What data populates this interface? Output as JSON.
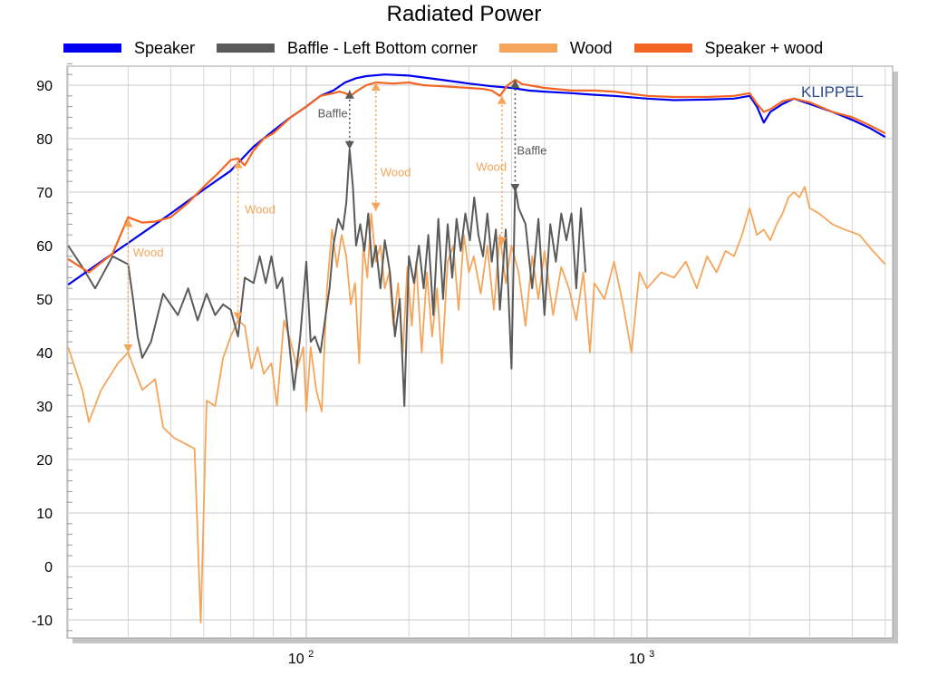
{
  "chart_data": {
    "type": "line",
    "title": "Radiated Power",
    "watermark": "KLIPPEL",
    "xlabel": "",
    "ylabel": "",
    "x_scale": "log",
    "xlim": [
      20,
      5000
    ],
    "ylim": [
      -12,
      95
    ],
    "grid": true,
    "legend_position": "top",
    "y_ticks": [
      -10,
      0,
      10,
      20,
      30,
      40,
      50,
      60,
      70,
      80,
      90
    ],
    "x_ticks": [
      {
        "value": 100,
        "base": "10",
        "exp": "2"
      },
      {
        "value": 1000,
        "base": "10",
        "exp": "3"
      }
    ],
    "series": [
      {
        "name": "Speaker",
        "color": "#0000ee",
        "points": [
          [
            20,
            52.7
          ],
          [
            25,
            57
          ],
          [
            30,
            60.5
          ],
          [
            40,
            66
          ],
          [
            50,
            70.5
          ],
          [
            60,
            74
          ],
          [
            70,
            78.5
          ],
          [
            80,
            81.5
          ],
          [
            90,
            84
          ],
          [
            100,
            86
          ],
          [
            110,
            88
          ],
          [
            120,
            89
          ],
          [
            130,
            90.5
          ],
          [
            140,
            91.3
          ],
          [
            150,
            91.7
          ],
          [
            170,
            92
          ],
          [
            200,
            91.8
          ],
          [
            250,
            91
          ],
          [
            300,
            90.3
          ],
          [
            350,
            89.8
          ],
          [
            400,
            89.5
          ],
          [
            450,
            89
          ],
          [
            500,
            88.8
          ],
          [
            600,
            88.5
          ],
          [
            700,
            88.2
          ],
          [
            800,
            88
          ],
          [
            1000,
            87.5
          ],
          [
            1200,
            87.2
          ],
          [
            1500,
            87.3
          ],
          [
            1800,
            87.5
          ],
          [
            2000,
            88
          ],
          [
            2100,
            86
          ],
          [
            2200,
            83
          ],
          [
            2300,
            85
          ],
          [
            2500,
            86.5
          ],
          [
            2700,
            87.5
          ],
          [
            3000,
            86.5
          ],
          [
            3500,
            85
          ],
          [
            4000,
            83.5
          ],
          [
            4500,
            82
          ],
          [
            5000,
            80.3
          ]
        ]
      },
      {
        "name": "Baffle - Left Bottom corner",
        "color": "#5a5a5a",
        "points": [
          [
            20,
            60
          ],
          [
            22,
            56
          ],
          [
            24,
            52
          ],
          [
            27,
            58
          ],
          [
            30,
            56.5
          ],
          [
            31,
            50
          ],
          [
            32,
            43
          ],
          [
            33,
            39
          ],
          [
            35,
            42
          ],
          [
            38,
            51
          ],
          [
            42,
            47
          ],
          [
            45,
            52
          ],
          [
            48,
            46
          ],
          [
            51,
            51
          ],
          [
            54,
            47
          ],
          [
            57,
            49
          ],
          [
            60,
            48
          ],
          [
            63,
            43
          ],
          [
            66,
            54
          ],
          [
            70,
            53
          ],
          [
            73,
            58
          ],
          [
            76,
            53
          ],
          [
            79,
            58
          ],
          [
            82,
            52
          ],
          [
            85,
            54
          ],
          [
            88,
            45
          ],
          [
            92,
            33
          ],
          [
            96,
            43
          ],
          [
            100,
            57
          ],
          [
            103,
            42
          ],
          [
            106,
            43
          ],
          [
            110,
            40
          ],
          [
            114,
            47
          ],
          [
            117,
            52
          ],
          [
            120,
            60
          ],
          [
            124,
            65
          ],
          [
            128,
            63
          ],
          [
            131,
            68
          ],
          [
            134,
            78
          ],
          [
            137,
            71
          ],
          [
            140,
            60
          ],
          [
            144,
            64
          ],
          [
            148,
            59
          ],
          [
            152,
            66
          ],
          [
            156,
            56
          ],
          [
            160,
            60
          ],
          [
            165,
            52
          ],
          [
            170,
            61
          ],
          [
            176,
            55
          ],
          [
            182,
            43
          ],
          [
            188,
            50
          ],
          [
            194,
            30
          ],
          [
            200,
            58
          ],
          [
            207,
            53
          ],
          [
            214,
            60
          ],
          [
            221,
            52
          ],
          [
            228,
            62
          ],
          [
            236,
            47
          ],
          [
            244,
            65
          ],
          [
            252,
            50
          ],
          [
            260,
            64
          ],
          [
            268,
            54
          ],
          [
            276,
            65
          ],
          [
            284,
            59
          ],
          [
            293,
            66
          ],
          [
            302,
            61
          ],
          [
            311,
            69
          ],
          [
            320,
            62
          ],
          [
            330,
            58
          ],
          [
            340,
            66
          ],
          [
            350,
            57
          ],
          [
            360,
            63
          ],
          [
            370,
            48
          ],
          [
            385,
            63
          ],
          [
            400,
            37
          ],
          [
            410,
            71
          ],
          [
            420,
            67
          ],
          [
            440,
            64
          ],
          [
            460,
            52
          ],
          [
            480,
            65
          ],
          [
            500,
            47
          ],
          [
            520,
            64
          ],
          [
            540,
            57
          ],
          [
            560,
            66
          ],
          [
            580,
            61
          ],
          [
            600,
            66
          ],
          [
            620,
            52
          ],
          [
            640,
            67
          ],
          [
            660,
            55
          ]
        ]
      },
      {
        "name": "Wood",
        "color": "#f5a55a",
        "points": [
          [
            20,
            41
          ],
          [
            22,
            33
          ],
          [
            23,
            27
          ],
          [
            25,
            33
          ],
          [
            28,
            38
          ],
          [
            30,
            40
          ],
          [
            33,
            33
          ],
          [
            36,
            35
          ],
          [
            38,
            26
          ],
          [
            41,
            24
          ],
          [
            44,
            23
          ],
          [
            47,
            22
          ],
          [
            49,
            -10.5
          ],
          [
            51,
            31
          ],
          [
            54,
            30
          ],
          [
            57,
            39
          ],
          [
            60,
            43
          ],
          [
            63,
            46
          ],
          [
            66,
            45
          ],
          [
            69,
            37
          ],
          [
            72,
            41
          ],
          [
            75,
            36
          ],
          [
            79,
            38
          ],
          [
            82,
            30
          ],
          [
            86,
            46
          ],
          [
            90,
            42
          ],
          [
            94,
            37
          ],
          [
            98,
            41
          ],
          [
            100,
            29
          ],
          [
            103,
            41
          ],
          [
            107,
            33
          ],
          [
            111,
            29
          ],
          [
            115,
            52
          ],
          [
            119,
            63
          ],
          [
            123,
            56
          ],
          [
            127,
            62
          ],
          [
            131,
            58
          ],
          [
            135,
            49
          ],
          [
            139,
            53
          ],
          [
            143,
            38
          ],
          [
            147,
            60
          ],
          [
            151,
            54
          ],
          [
            155,
            66
          ],
          [
            160,
            57
          ],
          [
            165,
            60
          ],
          [
            170,
            52
          ],
          [
            175,
            55
          ],
          [
            180,
            45
          ],
          [
            186,
            53
          ],
          [
            192,
            40
          ],
          [
            198,
            56
          ],
          [
            204,
            45
          ],
          [
            210,
            57
          ],
          [
            218,
            40
          ],
          [
            226,
            55
          ],
          [
            234,
            43
          ],
          [
            242,
            52
          ],
          [
            250,
            38
          ],
          [
            260,
            57
          ],
          [
            270,
            60
          ],
          [
            280,
            48
          ],
          [
            290,
            62
          ],
          [
            300,
            55
          ],
          [
            310,
            58
          ],
          [
            325,
            51
          ],
          [
            340,
            60
          ],
          [
            355,
            48
          ],
          [
            370,
            62
          ],
          [
            385,
            53
          ],
          [
            400,
            60
          ],
          [
            420,
            55
          ],
          [
            440,
            45
          ],
          [
            460,
            58
          ],
          [
            480,
            50
          ],
          [
            500,
            59
          ],
          [
            530,
            47
          ],
          [
            560,
            56
          ],
          [
            590,
            52
          ],
          [
            620,
            46
          ],
          [
            650,
            55
          ],
          [
            680,
            40
          ],
          [
            700,
            53
          ],
          [
            750,
            50
          ],
          [
            800,
            57
          ],
          [
            850,
            49
          ],
          [
            900,
            40
          ],
          [
            950,
            55
          ],
          [
            1000,
            52
          ],
          [
            1100,
            55
          ],
          [
            1200,
            54
          ],
          [
            1300,
            57
          ],
          [
            1400,
            52
          ],
          [
            1500,
            58
          ],
          [
            1600,
            55
          ],
          [
            1700,
            59
          ],
          [
            1800,
            58
          ],
          [
            1900,
            62
          ],
          [
            2000,
            67
          ],
          [
            2100,
            62
          ],
          [
            2200,
            63
          ],
          [
            2300,
            61
          ],
          [
            2400,
            64
          ],
          [
            2500,
            66
          ],
          [
            2600,
            69
          ],
          [
            2700,
            70
          ],
          [
            2800,
            69
          ],
          [
            2900,
            71
          ],
          [
            3000,
            67
          ],
          [
            3200,
            66
          ],
          [
            3500,
            64
          ],
          [
            3800,
            63
          ],
          [
            4200,
            62
          ],
          [
            4600,
            59
          ],
          [
            5000,
            56.5
          ]
        ]
      },
      {
        "name": "Speaker + wood",
        "color": "#f26522",
        "points": [
          [
            20,
            57.5
          ],
          [
            23,
            55
          ],
          [
            27,
            58.5
          ],
          [
            30,
            65.3
          ],
          [
            33,
            64.3
          ],
          [
            36,
            64.5
          ],
          [
            40,
            65.3
          ],
          [
            45,
            68
          ],
          [
            50,
            71
          ],
          [
            55,
            73.5
          ],
          [
            60,
            76
          ],
          [
            63,
            76.3
          ],
          [
            66,
            75
          ],
          [
            70,
            77.8
          ],
          [
            75,
            80
          ],
          [
            80,
            81
          ],
          [
            90,
            84
          ],
          [
            100,
            86
          ],
          [
            110,
            88
          ],
          [
            120,
            88.5
          ],
          [
            125,
            88.8
          ],
          [
            130,
            88.5
          ],
          [
            135,
            88
          ],
          [
            140,
            88.8
          ],
          [
            150,
            90
          ],
          [
            160,
            90.5
          ],
          [
            180,
            90.3
          ],
          [
            200,
            90.5
          ],
          [
            220,
            90
          ],
          [
            250,
            89.8
          ],
          [
            300,
            89.5
          ],
          [
            330,
            89.3
          ],
          [
            350,
            89
          ],
          [
            370,
            88
          ],
          [
            390,
            90
          ],
          [
            410,
            91
          ],
          [
            430,
            90.2
          ],
          [
            500,
            89.5
          ],
          [
            600,
            89
          ],
          [
            700,
            89
          ],
          [
            800,
            88.8
          ],
          [
            1000,
            88
          ],
          [
            1200,
            87.8
          ],
          [
            1500,
            87.8
          ],
          [
            1800,
            88
          ],
          [
            2000,
            88.5
          ],
          [
            2100,
            86.5
          ],
          [
            2200,
            85
          ],
          [
            2300,
            85.5
          ],
          [
            2500,
            87
          ],
          [
            2700,
            87.5
          ],
          [
            3000,
            86.8
          ],
          [
            3500,
            85
          ],
          [
            4000,
            84
          ],
          [
            4500,
            82.5
          ],
          [
            5000,
            81
          ]
        ]
      }
    ],
    "annotations": [
      {
        "label": "Wood",
        "color": "#f5a55a",
        "x": 30,
        "from": 65,
        "to": 40,
        "label_x": 31,
        "label_y": 58
      },
      {
        "label": "Wood",
        "color": "#f5a55a",
        "x": 63,
        "from": 76,
        "to": 46,
        "label_x": 66,
        "label_y": 66
      },
      {
        "label": "Baffle",
        "color": "#5a5a5a",
        "x": 134,
        "from": 89,
        "to": 78,
        "label_x": 108,
        "label_y": 84
      },
      {
        "label": "Wood",
        "color": "#f5a55a",
        "x": 160,
        "from": 90.5,
        "to": 66.5,
        "label_x": 165,
        "label_y": 73
      },
      {
        "label": "Wood",
        "color": "#f5a55a",
        "x": 375,
        "from": 88,
        "to": 60,
        "label_x": 315,
        "label_y": 74
      },
      {
        "label": "Baffle",
        "color": "#5a5a5a",
        "x": 410,
        "from": 91,
        "to": 70,
        "label_x": 415,
        "label_y": 77
      }
    ]
  }
}
